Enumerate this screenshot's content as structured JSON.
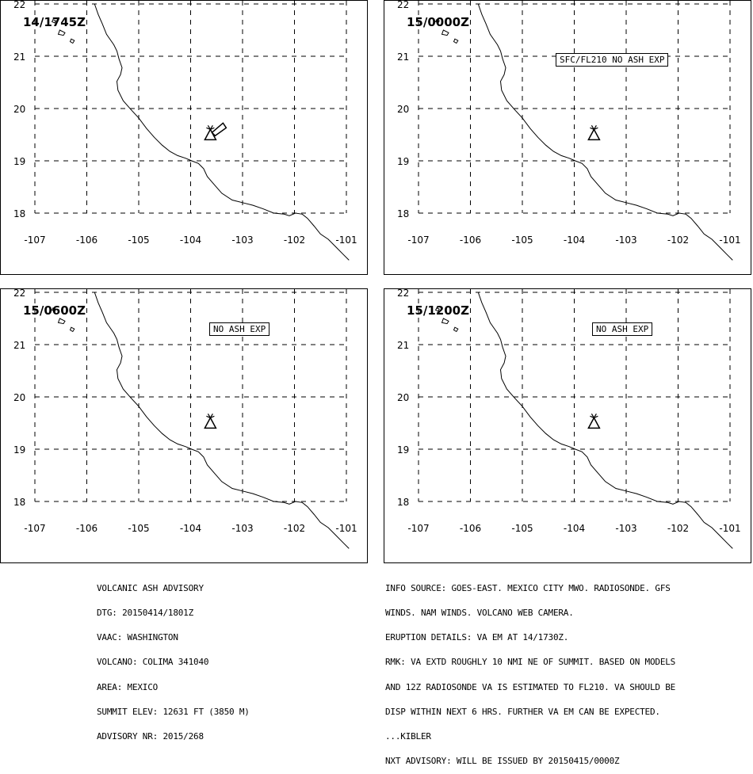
{
  "panels": [
    {
      "time": "14/1745Z",
      "status": ""
    },
    {
      "time": "15/0000Z",
      "status": "SFC/FL210 NO ASH EXP"
    },
    {
      "time": "15/0600Z",
      "status": "NO ASH EXP"
    },
    {
      "time": "15/1200Z",
      "status": "NO ASH EXP"
    }
  ],
  "map": {
    "lat_ticks": [
      "22",
      "21",
      "20",
      "19",
      "18"
    ],
    "lon_ticks": [
      "-107",
      "-106",
      "-105",
      "-104",
      "-103",
      "-102",
      "-101"
    ],
    "volcano": {
      "name": "COLIMA",
      "lat": 19.51,
      "lon": -103.62
    }
  },
  "advisory_left": [
    "VOLCANIC ASH ADVISORY",
    "DTG: 20150414/1801Z",
    "VAAC: WASHINGTON",
    "VOLCANO: COLIMA 341040",
    "AREA: MEXICO",
    "SUMMIT ELEV: 12631 FT (3850 M)",
    "ADVISORY NR: 2015/268"
  ],
  "advisory_right": [
    "INFO SOURCE: GOES-EAST. MEXICO CITY MWO. RADIOSONDE. GFS",
    "WINDS. NAM WINDS. VOLCANO WEB CAMERA.",
    "ERUPTION DETAILS: VA EM AT 14/1730Z.",
    "RMK: VA EXTD ROUGHLY 10 NMI NE OF SUMMIT. BASED ON MODELS",
    "AND 12Z RADIOSONDE VA IS ESTIMATED TO FL210. VA SHOULD BE",
    "DISP WITHIN NEXT 6 HRS. FURTHER VA EM CAN BE EXPECTED.",
    "...KIBLER",
    "NXT ADVISORY: WILL BE ISSUED BY 20150415/0000Z"
  ]
}
